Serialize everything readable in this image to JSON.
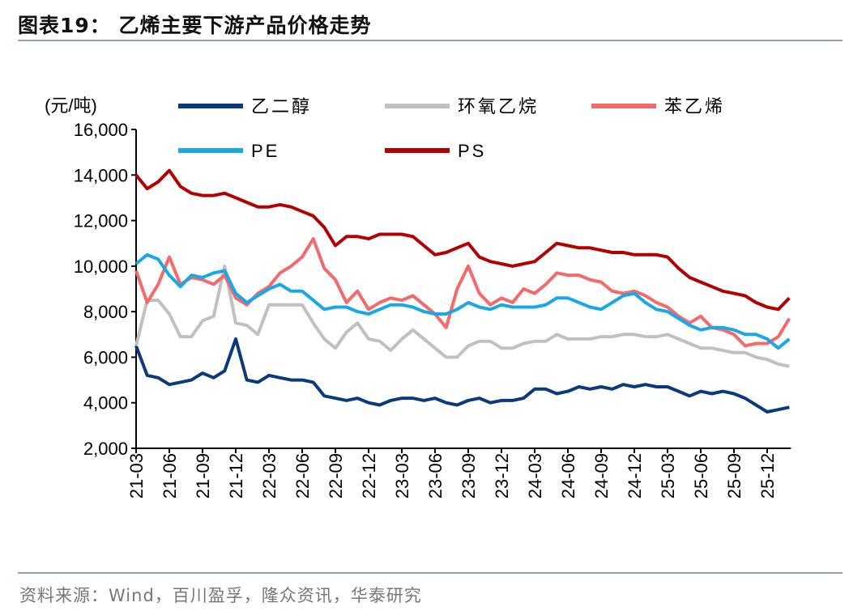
{
  "header": {
    "title": "图表19：  乙烯主要下游产品价格走势"
  },
  "footer": {
    "source": "资料来源：Wind，百川盈孚，隆众资讯，华泰研究"
  },
  "chart_data": {
    "type": "line",
    "title": "",
    "unit_label": "(元/吨)",
    "ylim": [
      2000,
      16000
    ],
    "yticks": [
      "2,000",
      "4,000",
      "6,000",
      "8,000",
      "10,000",
      "12,000",
      "14,000",
      "16,000"
    ],
    "ytick_values": [
      2000,
      4000,
      6000,
      8000,
      10000,
      12000,
      14000,
      16000
    ],
    "xticks": [
      "21-03",
      "21-06",
      "21-09",
      "21-12",
      "22-03",
      "22-06",
      "22-09",
      "22-12",
      "23-03",
      "23-06",
      "23-09",
      "23-12",
      "24-03",
      "24-06",
      "24-09",
      "24-12",
      "25-03",
      "25-06",
      "25-09",
      "25-12"
    ],
    "x_start": "21-03",
    "x_end": "26-02",
    "grid": false,
    "legend_placement": "top",
    "series": [
      {
        "name": "乙二醇",
        "color": "#0b3a7c",
        "values": [
          6500,
          5200,
          5100,
          4800,
          4900,
          5000,
          5300,
          5100,
          5400,
          6800,
          5000,
          4900,
          5200,
          5100,
          5000,
          5000,
          4900,
          4300,
          4200,
          4100,
          4200,
          4000,
          3900,
          4100,
          4200,
          4200,
          4100,
          4200,
          4000,
          3900,
          4100,
          4200,
          4000,
          4100,
          4100,
          4200,
          4600,
          4600,
          4400,
          4500,
          4700,
          4600,
          4700,
          4600,
          4800,
          4700,
          4800,
          4700,
          4700,
          4500,
          4300,
          4500,
          4400,
          4500,
          4400,
          4200,
          3900,
          3600,
          3700,
          3800
        ]
      },
      {
        "name": "环氧乙烷",
        "color": "#c0c0c0",
        "values": [
          6500,
          8500,
          8500,
          7900,
          6900,
          6900,
          7600,
          7800,
          10000,
          7500,
          7400,
          7000,
          8300,
          8300,
          8300,
          8300,
          7500,
          6800,
          6400,
          7100,
          7500,
          6800,
          6700,
          6300,
          6800,
          7200,
          6800,
          6400,
          6000,
          6000,
          6500,
          6700,
          6700,
          6400,
          6400,
          6600,
          6700,
          6700,
          7000,
          6800,
          6800,
          6800,
          6900,
          6900,
          7000,
          7000,
          6900,
          6900,
          7000,
          6800,
          6600,
          6400,
          6400,
          6300,
          6200,
          6200,
          6000,
          5900,
          5700,
          5600
        ]
      },
      {
        "name": "苯乙烯",
        "color": "#f46a6a",
        "values": [
          9800,
          8400,
          9200,
          10400,
          9200,
          9500,
          9400,
          9200,
          9600,
          8600,
          8300,
          8800,
          9100,
          9700,
          10000,
          10400,
          11200,
          9900,
          9400,
          8400,
          8900,
          8100,
          8400,
          8600,
          8500,
          8700,
          8300,
          7900,
          7300,
          9000,
          10000,
          8800,
          8300,
          8600,
          8400,
          9000,
          8800,
          9200,
          9700,
          9600,
          9600,
          9400,
          9300,
          8900,
          8800,
          8900,
          8700,
          8400,
          8200,
          7800,
          7500,
          7800,
          7300,
          7200,
          7000,
          6500,
          6600,
          6600,
          6900,
          7700
        ]
      },
      {
        "name": "PE",
        "color": "#1aa7e8",
        "values": [
          10100,
          10500,
          10300,
          9600,
          9100,
          9600,
          9500,
          9700,
          9800,
          8800,
          8400,
          8700,
          9000,
          9200,
          8900,
          8900,
          8500,
          8100,
          8200,
          8200,
          8000,
          7900,
          8100,
          8300,
          8300,
          8200,
          8000,
          7900,
          7900,
          8100,
          8400,
          8200,
          8100,
          8300,
          8200,
          8200,
          8200,
          8300,
          8600,
          8600,
          8400,
          8200,
          8100,
          8400,
          8700,
          8800,
          8400,
          8100,
          8000,
          7700,
          7400,
          7200,
          7300,
          7300,
          7200,
          7000,
          7000,
          6800,
          6400,
          6800
        ]
      },
      {
        "name": "PS",
        "color": "#b30000",
        "values": [
          14000,
          13400,
          13700,
          14200,
          13500,
          13200,
          13100,
          13100,
          13200,
          13000,
          12800,
          12600,
          12600,
          12700,
          12600,
          12400,
          12200,
          11700,
          10900,
          11300,
          11300,
          11200,
          11400,
          11400,
          11400,
          11300,
          10900,
          10500,
          10600,
          10800,
          11000,
          10400,
          10200,
          10100,
          10000,
          10100,
          10200,
          10600,
          11000,
          10900,
          10800,
          10800,
          10700,
          10600,
          10600,
          10500,
          10500,
          10500,
          10400,
          9900,
          9500,
          9300,
          9100,
          8900,
          8800,
          8700,
          8400,
          8200,
          8100,
          8600
        ]
      }
    ]
  }
}
